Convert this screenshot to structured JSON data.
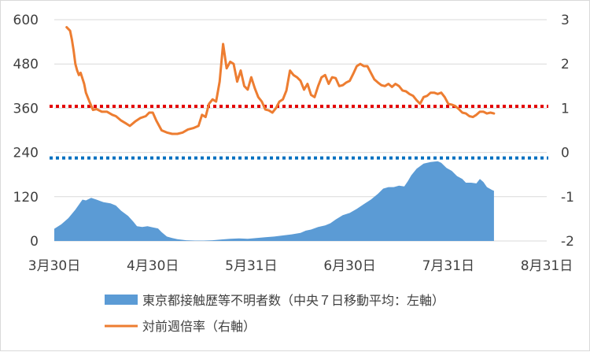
{
  "chart_data": {
    "type": "area+line",
    "title": "",
    "left_axis": {
      "min": 0,
      "max": 600,
      "ticks": [
        0,
        120,
        240,
        360,
        480,
        600
      ]
    },
    "right_axis": {
      "min": -2,
      "max": 3,
      "ticks": [
        "-2",
        "-1",
        "0",
        "1",
        "2",
        "3"
      ]
    },
    "x_ticks": [
      "3月30日",
      "4月30日",
      "5月31日",
      "6月30日",
      "7月31日",
      "8月31日"
    ],
    "colors": {
      "area": "#5b9bd5",
      "line": "#ed7d31",
      "red_ref": "#e30000",
      "blue_ref": "#0070c0"
    },
    "reference_lines": [
      {
        "axis": "left",
        "value": 365,
        "color": "#e30000"
      },
      {
        "axis": "left",
        "value": 225,
        "color": "#0070c0"
      }
    ],
    "series": [
      {
        "name": "東京都接触歴等不明者数（中央７日移動平均：左軸）",
        "axis": "left",
        "kind": "area",
        "points": [
          [
            0,
            33
          ],
          [
            4,
            45
          ],
          [
            8,
            62
          ],
          [
            12,
            85
          ],
          [
            16,
            112
          ],
          [
            18,
            110
          ],
          [
            21,
            117
          ],
          [
            24,
            112
          ],
          [
            28,
            105
          ],
          [
            32,
            102
          ],
          [
            35,
            96
          ],
          [
            38,
            82
          ],
          [
            42,
            68
          ],
          [
            45,
            52
          ],
          [
            47,
            40
          ],
          [
            50,
            38
          ],
          [
            53,
            40
          ],
          [
            56,
            37
          ],
          [
            59,
            34
          ],
          [
            61,
            24
          ],
          [
            64,
            12
          ],
          [
            67,
            8
          ],
          [
            70,
            5
          ],
          [
            75,
            2
          ],
          [
            80,
            1
          ],
          [
            85,
            1
          ],
          [
            90,
            2
          ],
          [
            95,
            4
          ],
          [
            100,
            6
          ],
          [
            105,
            7
          ],
          [
            110,
            6
          ],
          [
            115,
            8
          ],
          [
            120,
            10
          ],
          [
            125,
            12
          ],
          [
            130,
            15
          ],
          [
            135,
            18
          ],
          [
            140,
            22
          ],
          [
            143,
            28
          ],
          [
            146,
            31
          ],
          [
            150,
            38
          ],
          [
            154,
            42
          ],
          [
            157,
            48
          ],
          [
            160,
            58
          ],
          [
            164,
            70
          ],
          [
            168,
            76
          ],
          [
            172,
            87
          ],
          [
            176,
            100
          ],
          [
            180,
            112
          ],
          [
            184,
            128
          ],
          [
            187,
            142
          ],
          [
            190,
            146
          ],
          [
            193,
            146
          ],
          [
            196,
            150
          ],
          [
            199,
            148
          ],
          [
            201,
            162
          ],
          [
            203,
            178
          ],
          [
            206,
            196
          ],
          [
            210,
            210
          ],
          [
            214,
            214
          ],
          [
            218,
            216
          ],
          [
            220,
            212
          ],
          [
            223,
            198
          ],
          [
            226,
            190
          ],
          [
            229,
            176
          ],
          [
            232,
            168
          ],
          [
            234,
            158
          ],
          [
            237,
            158
          ],
          [
            240,
            156
          ],
          [
            242,
            168
          ],
          [
            244,
            160
          ],
          [
            246,
            146
          ],
          [
            249,
            138
          ],
          [
            250,
            136
          ]
        ]
      },
      {
        "name": "対前週倍率（右軸）",
        "axis": "right",
        "kind": "line",
        "points": [
          [
            7,
            2.83
          ],
          [
            9,
            2.75
          ],
          [
            10,
            2.55
          ],
          [
            11,
            2.3
          ],
          [
            12,
            2.0
          ],
          [
            13,
            1.85
          ],
          [
            14,
            1.75
          ],
          [
            15,
            1.8
          ],
          [
            17,
            1.55
          ],
          [
            18,
            1.35
          ],
          [
            20,
            1.15
          ],
          [
            22,
            0.96
          ],
          [
            24,
            0.98
          ],
          [
            27,
            0.92
          ],
          [
            30,
            0.92
          ],
          [
            33,
            0.85
          ],
          [
            35,
            0.82
          ],
          [
            38,
            0.72
          ],
          [
            41,
            0.65
          ],
          [
            43,
            0.6
          ],
          [
            46,
            0.7
          ],
          [
            49,
            0.78
          ],
          [
            52,
            0.82
          ],
          [
            54,
            0.9
          ],
          [
            56,
            0.9
          ],
          [
            58,
            0.72
          ],
          [
            61,
            0.5
          ],
          [
            64,
            0.45
          ],
          [
            67,
            0.42
          ],
          [
            70,
            0.42
          ],
          [
            73,
            0.45
          ],
          [
            76,
            0.52
          ],
          [
            79,
            0.55
          ],
          [
            82,
            0.6
          ],
          [
            84,
            0.85
          ],
          [
            86,
            0.8
          ],
          [
            88,
            1.1
          ],
          [
            90,
            1.2
          ],
          [
            92,
            1.15
          ],
          [
            94,
            1.6
          ],
          [
            96,
            2.45
          ],
          [
            98,
            1.9
          ],
          [
            100,
            2.05
          ],
          [
            102,
            2.0
          ],
          [
            104,
            1.6
          ],
          [
            106,
            1.85
          ],
          [
            108,
            1.5
          ],
          [
            110,
            1.42
          ],
          [
            112,
            1.7
          ],
          [
            114,
            1.45
          ],
          [
            116,
            1.25
          ],
          [
            118,
            1.15
          ],
          [
            120,
            0.97
          ],
          [
            122,
            0.95
          ],
          [
            124,
            0.9
          ],
          [
            126,
            1.0
          ],
          [
            128,
            1.15
          ],
          [
            130,
            1.2
          ],
          [
            132,
            1.4
          ],
          [
            134,
            1.85
          ],
          [
            136,
            1.75
          ],
          [
            138,
            1.7
          ],
          [
            140,
            1.62
          ],
          [
            142,
            1.42
          ],
          [
            144,
            1.55
          ],
          [
            146,
            1.3
          ],
          [
            148,
            1.25
          ],
          [
            150,
            1.5
          ],
          [
            152,
            1.7
          ],
          [
            154,
            1.75
          ],
          [
            156,
            1.55
          ],
          [
            158,
            1.7
          ],
          [
            160,
            1.68
          ],
          [
            162,
            1.5
          ],
          [
            164,
            1.52
          ],
          [
            166,
            1.58
          ],
          [
            168,
            1.62
          ],
          [
            170,
            1.78
          ],
          [
            172,
            1.95
          ],
          [
            174,
            2.0
          ],
          [
            176,
            1.95
          ],
          [
            178,
            1.95
          ],
          [
            180,
            1.8
          ],
          [
            182,
            1.65
          ],
          [
            184,
            1.58
          ],
          [
            186,
            1.52
          ],
          [
            188,
            1.5
          ],
          [
            190,
            1.55
          ],
          [
            192,
            1.48
          ],
          [
            194,
            1.55
          ],
          [
            196,
            1.5
          ],
          [
            198,
            1.4
          ],
          [
            200,
            1.38
          ],
          [
            202,
            1.32
          ],
          [
            204,
            1.28
          ],
          [
            206,
            1.18
          ],
          [
            208,
            1.1
          ],
          [
            210,
            1.25
          ],
          [
            212,
            1.28
          ],
          [
            214,
            1.35
          ],
          [
            216,
            1.35
          ],
          [
            218,
            1.32
          ],
          [
            220,
            1.35
          ],
          [
            222,
            1.25
          ],
          [
            224,
            1.1
          ],
          [
            226,
            1.08
          ],
          [
            228,
            1.05
          ],
          [
            230,
            0.98
          ],
          [
            232,
            0.9
          ],
          [
            234,
            0.88
          ],
          [
            236,
            0.82
          ],
          [
            238,
            0.8
          ],
          [
            240,
            0.85
          ],
          [
            242,
            0.92
          ],
          [
            244,
            0.92
          ],
          [
            246,
            0.88
          ],
          [
            248,
            0.9
          ],
          [
            250,
            0.88
          ]
        ]
      }
    ],
    "x_range": [
      0,
      280
    ],
    "x_tick_positions": [
      0,
      56,
      112,
      168,
      224,
      280
    ],
    "grid": "horizontal",
    "legend": "bottom"
  }
}
